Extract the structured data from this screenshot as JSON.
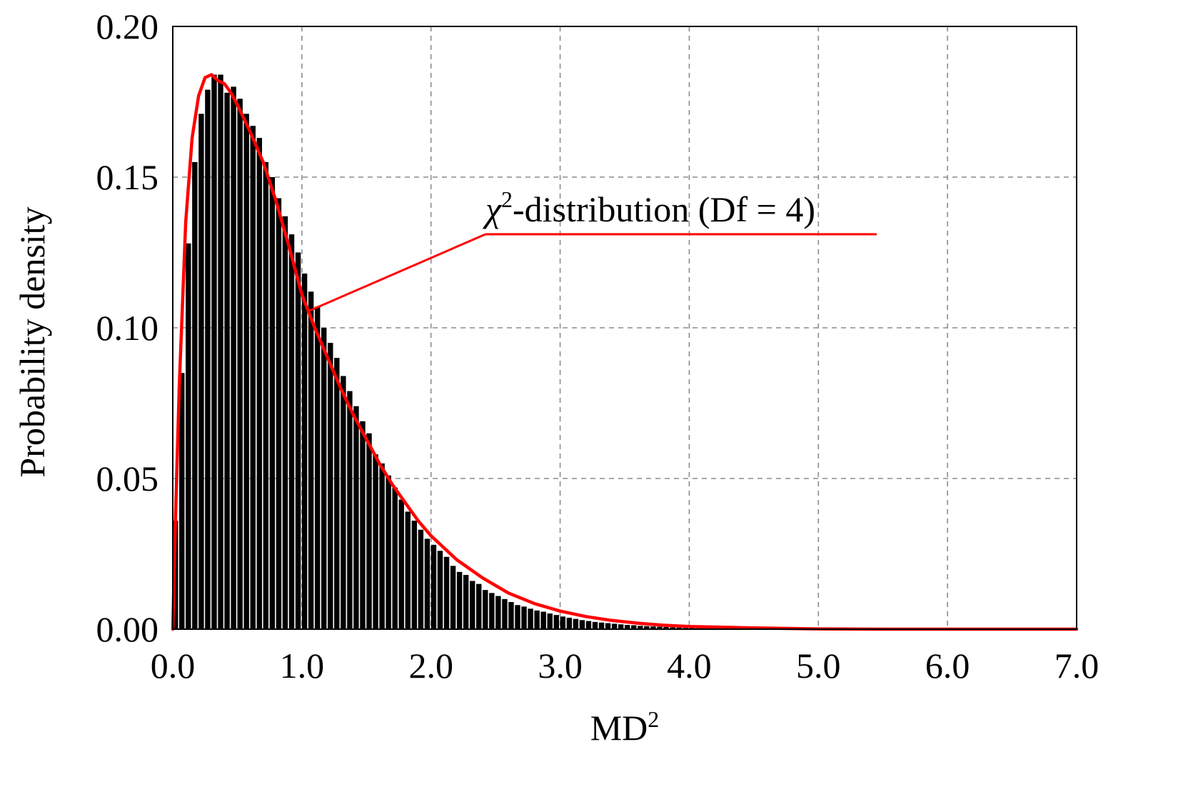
{
  "chart_data": {
    "type": "bar",
    "title": "",
    "xlabel": "MD",
    "xlabel_superscript": "2",
    "ylabel": "Probability density",
    "xlim": [
      0,
      7
    ],
    "ylim": [
      0,
      0.2
    ],
    "x_ticks": [
      "0.0",
      "1.0",
      "2.0",
      "3.0",
      "4.0",
      "5.0",
      "6.0",
      "7.0"
    ],
    "y_ticks": [
      "0.00",
      "0.05",
      "0.10",
      "0.15",
      "0.20"
    ],
    "grid": true,
    "bin_width": 0.05,
    "bins": {
      "x": [
        0.025,
        0.075,
        0.125,
        0.175,
        0.225,
        0.275,
        0.325,
        0.375,
        0.425,
        0.475,
        0.525,
        0.575,
        0.625,
        0.675,
        0.725,
        0.775,
        0.825,
        0.875,
        0.925,
        0.975,
        1.025,
        1.075,
        1.125,
        1.175,
        1.225,
        1.275,
        1.325,
        1.375,
        1.425,
        1.475,
        1.525,
        1.575,
        1.625,
        1.675,
        1.725,
        1.775,
        1.825,
        1.875,
        1.925,
        1.975,
        2.025,
        2.075,
        2.125,
        2.175,
        2.225,
        2.275,
        2.325,
        2.375,
        2.425,
        2.475,
        2.525,
        2.575,
        2.625,
        2.675,
        2.725,
        2.775,
        2.825,
        2.875,
        2.925,
        2.975,
        3.025,
        3.075,
        3.125,
        3.175,
        3.225,
        3.275,
        3.325,
        3.375,
        3.425,
        3.475,
        3.525,
        3.575,
        3.625,
        3.675,
        3.725,
        3.775,
        3.825,
        3.875,
        3.925,
        3.975,
        4.025,
        4.075,
        4.125,
        4.175,
        4.225,
        4.275,
        4.325,
        4.375,
        4.425,
        4.475,
        4.525,
        4.575,
        4.625,
        4.675,
        4.725,
        4.775,
        4.825,
        4.875,
        4.925,
        4.975
      ],
      "values": [
        0.036,
        0.085,
        0.128,
        0.155,
        0.171,
        0.179,
        0.184,
        0.184,
        0.178,
        0.18,
        0.176,
        0.171,
        0.167,
        0.163,
        0.155,
        0.15,
        0.143,
        0.137,
        0.131,
        0.125,
        0.118,
        0.112,
        0.107,
        0.1,
        0.095,
        0.09,
        0.084,
        0.079,
        0.074,
        0.069,
        0.065,
        0.058,
        0.055,
        0.051,
        0.047,
        0.043,
        0.039,
        0.036,
        0.033,
        0.03,
        0.028,
        0.026,
        0.024,
        0.021,
        0.019,
        0.018,
        0.016,
        0.015,
        0.013,
        0.012,
        0.011,
        0.01,
        0.009,
        0.008,
        0.0075,
        0.0068,
        0.0062,
        0.0058,
        0.0052,
        0.0047,
        0.0042,
        0.0038,
        0.0034,
        0.003,
        0.0027,
        0.0024,
        0.0022,
        0.002,
        0.0018,
        0.0016,
        0.0014,
        0.0013,
        0.0011,
        0.001,
        0.0009,
        0.0008,
        0.0007,
        0.0006,
        0.0005,
        0.0004,
        0.0004,
        0.0003,
        0.0003,
        0.0003,
        0.0002,
        0.0002,
        0.0002,
        0.0002,
        0.0001,
        0.0001,
        0.0001,
        0.0001,
        0.0001,
        0.0001,
        0.0001,
        0.0001,
        0.0001,
        0.0001,
        0.0001,
        0.0001
      ]
    },
    "series": [
      {
        "name": "χ2-distribution (Df = 4)",
        "type": "line",
        "color": "#ff0000",
        "x": [
          0.0,
          0.02,
          0.05,
          0.1,
          0.15,
          0.2,
          0.25,
          0.3,
          0.35,
          0.4,
          0.45,
          0.5,
          0.6,
          0.7,
          0.8,
          0.9,
          1.0,
          1.1,
          1.2,
          1.3,
          1.4,
          1.5,
          1.6,
          1.7,
          1.8,
          1.9,
          2.0,
          2.2,
          2.4,
          2.6,
          2.8,
          3.0,
          3.2,
          3.4,
          3.6,
          3.8,
          4.0,
          4.5,
          5.0,
          5.5,
          6.0,
          6.5,
          7.0
        ],
        "y": [
          0.0,
          0.035,
          0.08,
          0.135,
          0.163,
          0.177,
          0.183,
          0.184,
          0.182,
          0.181,
          0.178,
          0.174,
          0.165,
          0.155,
          0.142,
          0.127,
          0.111,
          0.1,
          0.09,
          0.08,
          0.071,
          0.063,
          0.055,
          0.048,
          0.042,
          0.036,
          0.031,
          0.023,
          0.017,
          0.012,
          0.0085,
          0.006,
          0.0042,
          0.0029,
          0.002,
          0.0013,
          0.0009,
          0.0004,
          0.0001,
          0.0,
          0.0,
          0.0,
          0.0
        ]
      }
    ],
    "annotation": {
      "text": "-distribution (Df = 4)",
      "symbol": "χ",
      "superscript": "2",
      "points_to_x": 1.05
    },
    "colors": {
      "bars": "#000000",
      "curve": "#ff0000",
      "grid": "#8c8c8c",
      "frame": "#000000"
    }
  }
}
